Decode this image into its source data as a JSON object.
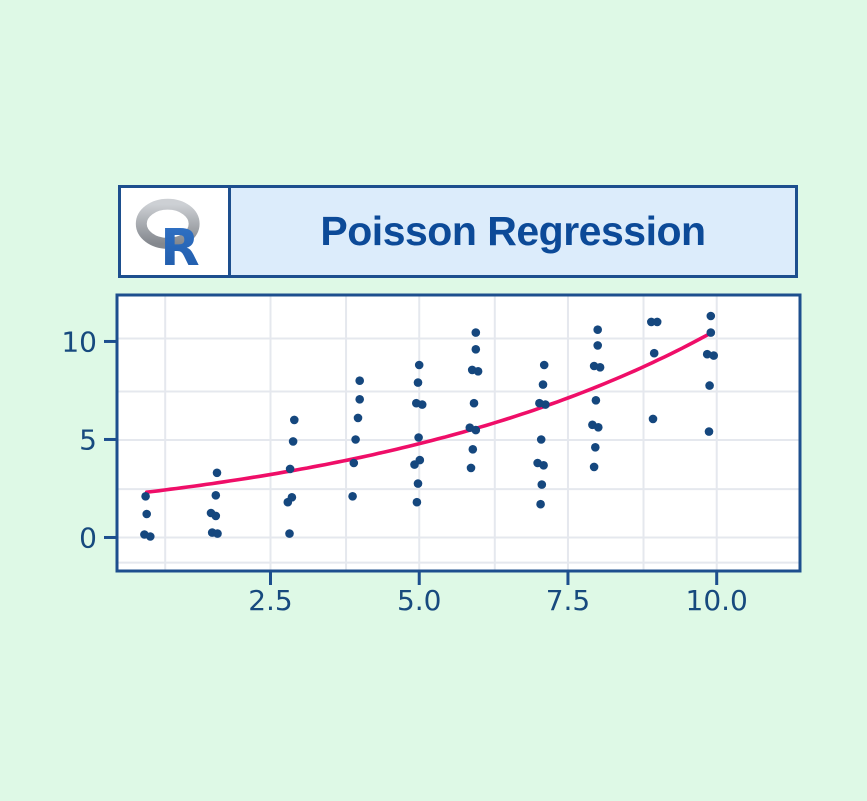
{
  "page": {
    "background": "#def9e6"
  },
  "header": {
    "title": "Poisson Regression",
    "title_color": "#0c4a98",
    "panel_bg": "#dcecfb",
    "logo_bg": "#ffffff",
    "border_color": "#1d4f8e",
    "logo": {
      "icon": "r-language-logo",
      "letter": "R",
      "letter_color": "#2b6bbd",
      "ring_color_light": "#c9ccd0",
      "ring_color_dark": "#8a8e94"
    }
  },
  "chart_data": {
    "type": "scatter",
    "title": "Poisson Regression",
    "xlabel": "",
    "ylabel": "",
    "x_ticks": [
      2.5,
      5.0,
      7.5,
      10.0
    ],
    "x_tick_labels": [
      "2.5",
      "5.0",
      "7.5",
      "10.0"
    ],
    "y_ticks": [
      0,
      5,
      10
    ],
    "y_tick_labels": [
      "0",
      "5",
      "10"
    ],
    "x_range": [
      -0.08,
      11.4
    ],
    "y_range": [
      -1.71,
      12.37
    ],
    "grid_on": true,
    "x_gridlines": [
      0.73,
      2.5,
      3.77,
      5.0,
      6.27,
      7.5,
      8.77,
      10.0
    ],
    "y_gridlines": [
      10.15,
      7.45,
      4.97,
      2.47,
      0,
      -1.28
    ],
    "grid_color": "#e5e8ee",
    "plot_bg": "#ffffff",
    "axis_color": "#1d4f8e",
    "tick_label_color": "#174a7e",
    "point_color": "#15477e",
    "point_radius": 4.3,
    "points": [
      [
        0.4,
        2.1
      ],
      [
        0.42,
        1.2
      ],
      [
        0.38,
        0.15
      ],
      [
        0.48,
        0.05
      ],
      [
        1.6,
        3.3
      ],
      [
        1.58,
        2.15
      ],
      [
        1.5,
        1.25
      ],
      [
        1.58,
        1.1
      ],
      [
        1.52,
        0.25
      ],
      [
        1.61,
        0.2
      ],
      [
        2.9,
        6.0
      ],
      [
        2.88,
        4.9
      ],
      [
        2.83,
        3.5
      ],
      [
        2.86,
        2.05
      ],
      [
        2.79,
        1.8
      ],
      [
        2.82,
        0.2
      ],
      [
        4.0,
        8.0
      ],
      [
        4.0,
        7.05
      ],
      [
        3.97,
        6.1
      ],
      [
        3.93,
        5.0
      ],
      [
        3.9,
        3.8
      ],
      [
        3.88,
        2.1
      ],
      [
        5.0,
        8.8
      ],
      [
        4.98,
        7.9
      ],
      [
        4.95,
        6.85
      ],
      [
        5.05,
        6.78
      ],
      [
        4.99,
        5.1
      ],
      [
        5.01,
        3.95
      ],
      [
        4.92,
        3.72
      ],
      [
        4.98,
        2.75
      ],
      [
        4.96,
        1.8
      ],
      [
        5.95,
        10.45
      ],
      [
        5.95,
        9.6
      ],
      [
        5.89,
        8.55
      ],
      [
        5.99,
        8.48
      ],
      [
        5.92,
        6.85
      ],
      [
        5.85,
        5.6
      ],
      [
        5.95,
        5.48
      ],
      [
        5.9,
        4.5
      ],
      [
        5.87,
        3.55
      ],
      [
        7.1,
        8.8
      ],
      [
        7.08,
        7.8
      ],
      [
        7.02,
        6.85
      ],
      [
        7.12,
        6.78
      ],
      [
        7.05,
        5.0
      ],
      [
        6.99,
        3.8
      ],
      [
        7.09,
        3.68
      ],
      [
        7.06,
        2.7
      ],
      [
        7.04,
        1.7
      ],
      [
        8.0,
        10.6
      ],
      [
        8.0,
        9.8
      ],
      [
        7.94,
        8.75
      ],
      [
        8.04,
        8.68
      ],
      [
        7.97,
        7.0
      ],
      [
        7.91,
        5.75
      ],
      [
        8.01,
        5.62
      ],
      [
        7.96,
        4.6
      ],
      [
        7.94,
        3.6
      ],
      [
        8.9,
        11.0
      ],
      [
        9.0,
        11.0
      ],
      [
        8.95,
        9.4
      ],
      [
        8.93,
        6.05
      ],
      [
        9.9,
        11.3
      ],
      [
        9.9,
        10.45
      ],
      [
        9.84,
        9.35
      ],
      [
        9.95,
        9.28
      ],
      [
        9.88,
        7.75
      ],
      [
        9.87,
        5.4
      ]
    ],
    "curve": {
      "type": "exponential",
      "formula": "y = exp(0.77 + 0.159x)",
      "a": 0.77,
      "b": 0.159,
      "x_start": 0.42,
      "x_end": 9.95,
      "color": "#ef0e68",
      "width": 3.6
    },
    "legend": []
  }
}
